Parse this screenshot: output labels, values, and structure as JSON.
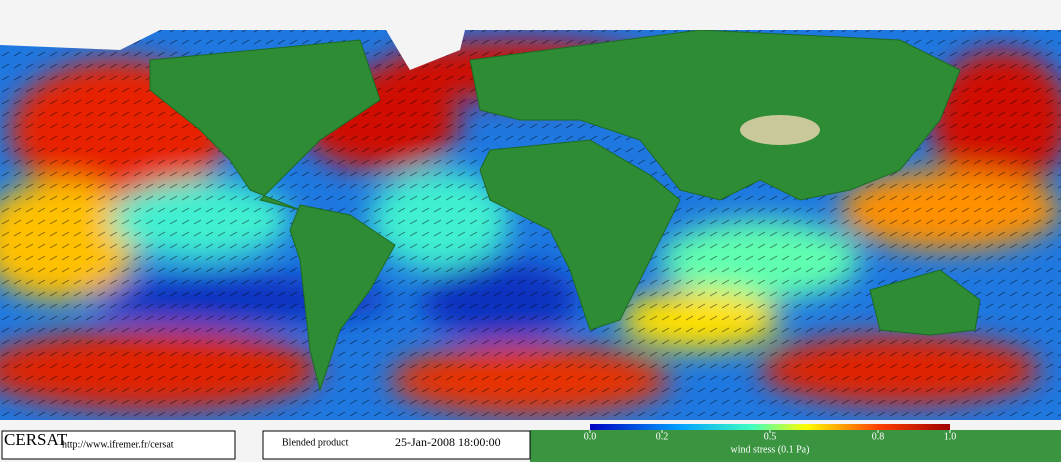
{
  "logo": "CERSAT",
  "url": "http://www.ifremer.fr/cersat",
  "product": "Blended product",
  "date": "25-Jan-2008 18:00:00",
  "colorbar": {
    "label": "wind stress (0.1 Pa)",
    "lim": [
      0,
      1
    ],
    "ticks": [
      {
        "value": 0,
        "label": "0.0"
      },
      {
        "value": 0.2,
        "label": "0.2"
      },
      {
        "value": 0.5,
        "label": "0.5"
      },
      {
        "value": 0.8,
        "label": "0.8"
      },
      {
        "value": 1,
        "label": "1.0"
      }
    ]
  }
}
